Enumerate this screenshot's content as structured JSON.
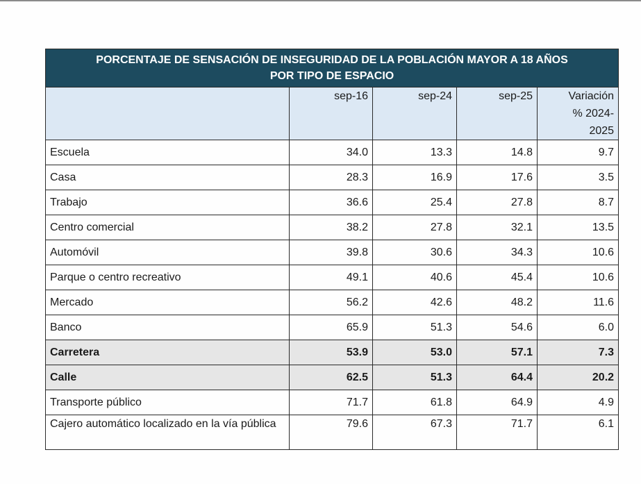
{
  "title_line1": "PORCENTAJE DE SENSACIÓN DE INSEGURIDAD DE LA POBLACIÓN MAYOR A 18 AÑOS",
  "title_line2": "POR TIPO DE ESPACIO",
  "chart_data": {
    "type": "table",
    "title": "PORCENTAJE DE SENSACIÓN DE INSEGURIDAD DE LA POBLACIÓN MAYOR A 18 AÑOS POR TIPO DE ESPACIO",
    "columns": [
      "",
      "sep-16",
      "sep-24",
      "sep-25",
      "Variación % 2024-2025"
    ],
    "header_variation_lines": [
      "Variación",
      "% 2024-",
      "2025"
    ],
    "rows": [
      {
        "label": "Escuela",
        "values": [
          "34.0",
          "13.3",
          "14.8",
          "9.7"
        ],
        "highlight": false
      },
      {
        "label": "Casa",
        "values": [
          "28.3",
          "16.9",
          "17.6",
          "3.5"
        ],
        "highlight": false
      },
      {
        "label": "Trabajo",
        "values": [
          "36.6",
          "25.4",
          "27.8",
          "8.7"
        ],
        "highlight": false
      },
      {
        "label": "Centro comercial",
        "values": [
          "38.2",
          "27.8",
          "32.1",
          "13.5"
        ],
        "highlight": false
      },
      {
        "label": "Automóvil",
        "values": [
          "39.8",
          "30.6",
          "34.3",
          "10.6"
        ],
        "highlight": false
      },
      {
        "label": "Parque o centro recreativo",
        "values": [
          "49.1",
          "40.6",
          "45.4",
          "10.6"
        ],
        "highlight": false
      },
      {
        "label": "Mercado",
        "values": [
          "56.2",
          "42.6",
          "48.2",
          "11.6"
        ],
        "highlight": false
      },
      {
        "label": "Banco",
        "values": [
          "65.9",
          "51.3",
          "54.6",
          "6.0"
        ],
        "highlight": false
      },
      {
        "label": "Carretera",
        "values": [
          "53.9",
          "53.0",
          "57.1",
          "7.3"
        ],
        "highlight": true
      },
      {
        "label": "Calle",
        "values": [
          "62.5",
          "51.3",
          "64.4",
          "20.2"
        ],
        "highlight": true
      },
      {
        "label": "Transporte público",
        "values": [
          "71.7",
          "61.8",
          "64.9",
          "4.9"
        ],
        "highlight": false
      },
      {
        "label": "Cajero automático localizado en la vía pública",
        "values": [
          "79.6",
          "67.3",
          "71.7",
          "6.1"
        ],
        "highlight": false
      }
    ]
  },
  "colors": {
    "title_bg": "#1d4b5f",
    "header_bg": "#dce8f4",
    "highlight_bg": "#e6e6e6"
  }
}
